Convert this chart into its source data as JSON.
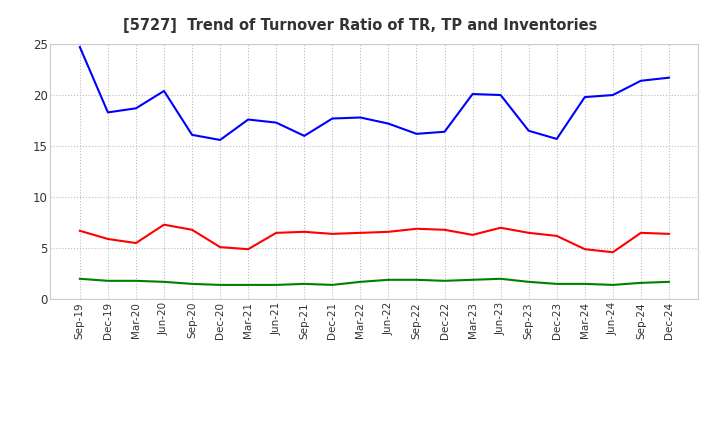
{
  "title": "[5727]  Trend of Turnover Ratio of TR, TP and Inventories",
  "x_labels": [
    "Sep-19",
    "Dec-19",
    "Mar-20",
    "Jun-20",
    "Sep-20",
    "Dec-20",
    "Mar-21",
    "Jun-21",
    "Sep-21",
    "Dec-21",
    "Mar-22",
    "Jun-22",
    "Sep-22",
    "Dec-22",
    "Mar-23",
    "Jun-23",
    "Sep-23",
    "Dec-23",
    "Mar-24",
    "Jun-24",
    "Sep-24",
    "Dec-24"
  ],
  "trade_receivables": [
    6.7,
    5.9,
    5.5,
    7.3,
    6.8,
    5.1,
    4.9,
    6.5,
    6.6,
    6.4,
    6.5,
    6.6,
    6.9,
    6.8,
    6.3,
    7.0,
    6.5,
    6.2,
    4.9,
    4.6,
    6.5,
    6.4
  ],
  "trade_payables": [
    24.7,
    18.3,
    18.7,
    20.4,
    16.1,
    15.6,
    17.6,
    17.3,
    16.0,
    17.7,
    17.8,
    17.2,
    16.2,
    16.4,
    20.1,
    20.0,
    16.5,
    15.7,
    19.8,
    20.0,
    21.4,
    21.7
  ],
  "inventories": [
    2.0,
    1.8,
    1.8,
    1.7,
    1.5,
    1.4,
    1.4,
    1.4,
    1.5,
    1.4,
    1.7,
    1.9,
    1.9,
    1.8,
    1.9,
    2.0,
    1.7,
    1.5,
    1.5,
    1.4,
    1.6,
    1.7
  ],
  "tr_color": "#ff0000",
  "tp_color": "#0000ff",
  "inv_color": "#008000",
  "ylim": [
    0.0,
    25.0
  ],
  "yticks": [
    0.0,
    5.0,
    10.0,
    15.0,
    20.0,
    25.0
  ],
  "ytick_labels": [
    "0",
    "5",
    "10",
    "15",
    "20",
    "25"
  ],
  "background_color": "#ffffff",
  "grid_color": "#bbbbbb",
  "title_color": "#333333"
}
